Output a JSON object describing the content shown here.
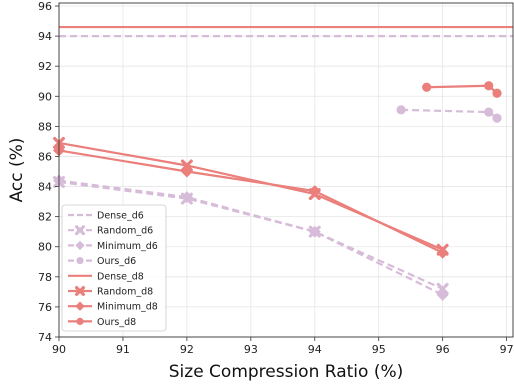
{
  "chart_data": {
    "type": "line",
    "title": "",
    "xlabel": "Size Compression Ratio (%)",
    "ylabel": "Acc (%)",
    "xlim": [
      90,
      97.1
    ],
    "ylim": [
      74,
      96.2
    ],
    "xticks": [
      90,
      91,
      92,
      93,
      94,
      95,
      96,
      97
    ],
    "yticks": [
      74,
      76,
      78,
      80,
      82,
      84,
      86,
      88,
      90,
      92,
      94,
      96
    ],
    "grid": true,
    "legend_position": "lower-left",
    "colors": {
      "d6": "#d7bcd9",
      "d8": "#ea7f7b"
    },
    "series": [
      {
        "name": "Dense_d6",
        "kind": "hline",
        "style": "dashed",
        "color": "#d7bcd9",
        "y": 94.0
      },
      {
        "name": "Random_d6",
        "style": "dashed",
        "marker": "x",
        "color": "#d7bcd9",
        "points": [
          [
            90,
            84.3
          ],
          [
            92,
            83.2
          ],
          [
            94,
            81.0
          ],
          [
            96,
            77.2
          ]
        ]
      },
      {
        "name": "Minimum_d6",
        "style": "dashed",
        "marker": "diamond",
        "color": "#d7bcd9",
        "points": [
          [
            90,
            84.4
          ],
          [
            92,
            83.3
          ],
          [
            94,
            81.0
          ],
          [
            96,
            76.8
          ]
        ]
      },
      {
        "name": "Ours_d6",
        "style": "dashed",
        "marker": "circle",
        "color": "#d7bcd9",
        "points": [
          [
            95.35,
            89.1
          ],
          [
            96.72,
            88.95
          ],
          [
            96.85,
            88.55
          ]
        ]
      },
      {
        "name": "Dense_d8",
        "kind": "hline",
        "style": "solid",
        "color": "#ea7f7b",
        "y": 94.6
      },
      {
        "name": "Random_d8",
        "style": "solid",
        "marker": "x",
        "color": "#ea7f7b",
        "points": [
          [
            90,
            86.9
          ],
          [
            92,
            85.4
          ],
          [
            94,
            83.5
          ],
          [
            96,
            79.8
          ]
        ]
      },
      {
        "name": "Minimum_d8",
        "style": "solid",
        "marker": "diamond",
        "color": "#ea7f7b",
        "points": [
          [
            90,
            86.4
          ],
          [
            92,
            85.0
          ],
          [
            94,
            83.7
          ],
          [
            96,
            79.6
          ]
        ]
      },
      {
        "name": "Ours_d8",
        "style": "solid",
        "marker": "circle",
        "color": "#ea7f7b",
        "points": [
          [
            95.75,
            90.6
          ],
          [
            96.72,
            90.7
          ],
          [
            96.85,
            90.2
          ]
        ]
      }
    ]
  }
}
